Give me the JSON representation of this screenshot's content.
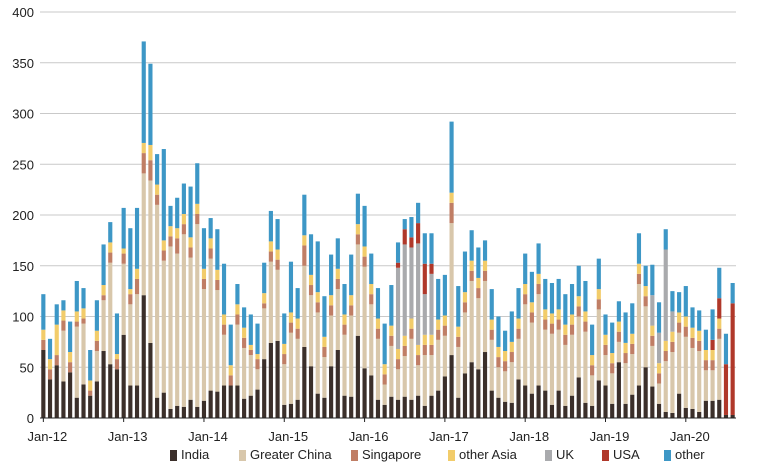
{
  "chart_data": {
    "type": "bar",
    "stacked": true,
    "title": "",
    "xlabel": "",
    "ylabel": "",
    "ylim": [
      0,
      400
    ],
    "yticks": [
      0,
      50,
      100,
      150,
      200,
      250,
      300,
      350,
      400
    ],
    "grid": true,
    "legend_position": "bottom",
    "x_tick_labels": [
      {
        "label": "Jan-12",
        "index": 0
      },
      {
        "label": "Jan-13",
        "index": 12
      },
      {
        "label": "Jan-14",
        "index": 24
      },
      {
        "label": "Jan-15",
        "index": 36
      },
      {
        "label": "Jan-16",
        "index": 48
      },
      {
        "label": "Jan-17",
        "index": 60
      },
      {
        "label": "Jan-18",
        "index": 72
      },
      {
        "label": "Jan-19",
        "index": 84
      },
      {
        "label": "Jan-20",
        "index": 96
      }
    ],
    "series": [
      {
        "name": "India",
        "color": "#3b2f2a",
        "values": [
          67,
          38,
          52,
          36,
          45,
          20,
          33,
          22,
          36,
          66,
          53,
          48,
          82,
          32,
          32,
          121,
          74,
          20,
          25,
          9,
          12,
          11,
          18,
          11,
          17,
          27,
          26,
          32,
          32,
          32,
          19,
          22,
          28,
          58,
          74,
          76,
          13,
          14,
          18,
          70,
          51,
          24,
          20,
          51,
          67,
          22,
          21,
          81,
          49,
          42,
          18,
          13,
          21,
          18,
          21,
          18,
          22,
          12,
          22,
          27,
          41,
          62,
          20,
          44,
          55,
          48,
          65,
          27,
          20,
          16,
          15,
          38,
          32,
          24,
          32,
          27,
          13,
          27,
          12,
          22,
          40,
          15,
          12,
          37,
          32,
          14,
          55,
          14,
          23,
          32,
          50,
          31,
          14,
          6,
          5,
          24,
          10,
          9,
          6,
          17,
          17,
          18,
          3,
          3
        ]
      },
      {
        "name": "Greater China",
        "color": "#d8c7ab",
        "values": [
          0,
          0,
          0,
          50,
          0,
          70,
          60,
          0,
          30,
          50,
          100,
          0,
          70,
          80,
          90,
          120,
          160,
          190,
          130,
          160,
          150,
          170,
          140,
          180,
          110,
          130,
          100,
          50,
          0,
          60,
          50,
          40,
          20,
          50,
          80,
          70,
          40,
          70,
          60,
          80,
          70,
          80,
          40,
          50,
          60,
          60,
          80,
          90,
          100,
          70,
          60,
          20,
          50,
          30,
          40,
          60,
          30,
          50,
          40,
          50,
          40,
          130,
          50,
          60,
          80,
          70,
          70,
          50,
          30,
          30,
          40,
          40,
          80,
          70,
          90,
          60,
          70,
          60,
          60,
          60,
          60,
          70,
          30,
          70,
          30,
          30,
          20,
          40,
          40,
          100,
          60,
          40,
          20,
          50,
          60,
          60,
          70,
          60,
          60,
          30,
          30,
          60,
          0,
          0
        ]
      },
      {
        "name": "Singapore",
        "color": "#c07e65",
        "values": [
          10,
          10,
          10,
          10,
          10,
          5,
          5,
          5,
          10,
          5,
          10,
          10,
          10,
          10,
          15,
          20,
          20,
          10,
          10,
          10,
          15,
          10,
          10,
          10,
          10,
          10,
          10,
          10,
          10,
          10,
          10,
          5,
          10,
          5,
          10,
          10,
          10,
          10,
          10,
          20,
          10,
          10,
          10,
          10,
          10,
          10,
          10,
          10,
          10,
          10,
          10,
          10,
          10,
          10,
          10,
          10,
          10,
          10,
          10,
          10,
          10,
          20,
          10,
          10,
          10,
          10,
          10,
          10,
          10,
          10,
          10,
          10,
          10,
          10,
          10,
          10,
          10,
          10,
          10,
          10,
          10,
          10,
          10,
          10,
          10,
          10,
          10,
          10,
          10,
          10,
          10,
          10,
          10,
          10,
          10,
          10,
          10,
          10,
          10,
          10,
          10,
          10,
          0,
          0
        ]
      },
      {
        "name": "other Asia",
        "color": "#f2cc6a",
        "values": [
          10,
          10,
          30,
          10,
          10,
          10,
          10,
          10,
          10,
          10,
          10,
          5,
          5,
          5,
          10,
          10,
          15,
          10,
          10,
          10,
          10,
          10,
          10,
          10,
          10,
          10,
          10,
          10,
          10,
          10,
          10,
          5,
          5,
          10,
          10,
          10,
          10,
          10,
          10,
          10,
          10,
          10,
          10,
          10,
          10,
          10,
          10,
          10,
          10,
          10,
          10,
          10,
          10,
          10,
          10,
          10,
          10,
          10,
          10,
          10,
          10,
          10,
          10,
          10,
          10,
          10,
          10,
          10,
          10,
          10,
          10,
          10,
          10,
          10,
          10,
          10,
          10,
          10,
          10,
          10,
          10,
          10,
          10,
          10,
          10,
          10,
          10,
          10,
          10,
          10,
          10,
          10,
          10,
          10,
          10,
          10,
          10,
          10,
          10,
          10,
          10,
          10,
          0,
          0
        ]
      },
      {
        "name": "UK",
        "color": "#a9aaad",
        "values": [
          0,
          0,
          0,
          0,
          0,
          0,
          0,
          0,
          0,
          0,
          0,
          0,
          0,
          0,
          0,
          0,
          0,
          0,
          0,
          0,
          0,
          0,
          0,
          0,
          0,
          0,
          0,
          0,
          0,
          0,
          0,
          0,
          0,
          0,
          0,
          0,
          0,
          0,
          0,
          0,
          0,
          0,
          0,
          0,
          0,
          0,
          0,
          0,
          0,
          0,
          0,
          0,
          0,
          80,
          90,
          70,
          100,
          40,
          60,
          0,
          0,
          0,
          0,
          0,
          0,
          0,
          0,
          0,
          0,
          0,
          0,
          0,
          0,
          0,
          0,
          0,
          0,
          0,
          0,
          0,
          0,
          0,
          0,
          0,
          0,
          0,
          0,
          0,
          0,
          0,
          0,
          30,
          30,
          90,
          20,
          0,
          0,
          0,
          0,
          0,
          0,
          0,
          0,
          0
        ]
      },
      {
        "name": "USA",
        "color": "#b0382a",
        "values": [
          0,
          0,
          0,
          0,
          0,
          0,
          0,
          0,
          0,
          0,
          0,
          0,
          0,
          0,
          0,
          0,
          0,
          0,
          0,
          0,
          0,
          0,
          0,
          0,
          0,
          0,
          0,
          0,
          0,
          0,
          0,
          0,
          0,
          0,
          0,
          0,
          0,
          0,
          0,
          0,
          0,
          0,
          0,
          0,
          0,
          0,
          0,
          0,
          0,
          0,
          0,
          0,
          0,
          5,
          15,
          10,
          20,
          30,
          10,
          0,
          0,
          0,
          0,
          0,
          0,
          0,
          0,
          0,
          0,
          0,
          0,
          0,
          0,
          0,
          0,
          0,
          0,
          0,
          0,
          0,
          0,
          0,
          0,
          0,
          0,
          0,
          0,
          0,
          0,
          0,
          0,
          0,
          0,
          0,
          0,
          0,
          0,
          0,
          0,
          0,
          10,
          20,
          50,
          110
        ]
      },
      {
        "name": "other",
        "color": "#3d97c6",
        "values": [
          35,
          20,
          20,
          10,
          30,
          30,
          20,
          30,
          30,
          40,
          20,
          40,
          40,
          60,
          60,
          100,
          80,
          30,
          90,
          20,
          30,
          30,
          50,
          40,
          40,
          20,
          40,
          50,
          40,
          20,
          20,
          30,
          30,
          30,
          30,
          30,
          30,
          50,
          30,
          40,
          40,
          50,
          40,
          40,
          30,
          30,
          40,
          30,
          40,
          30,
          30,
          40,
          40,
          20,
          10,
          20,
          20,
          30,
          30,
          40,
          40,
          70,
          40,
          40,
          30,
          30,
          20,
          30,
          30,
          20,
          30,
          30,
          30,
          30,
          30,
          30,
          30,
          30,
          30,
          30,
          30,
          30,
          30,
          30,
          20,
          30,
          20,
          30,
          30,
          30,
          20,
          30,
          30,
          20,
          20,
          20,
          30,
          20,
          20,
          20,
          30,
          30,
          30,
          20
        ]
      }
    ]
  }
}
